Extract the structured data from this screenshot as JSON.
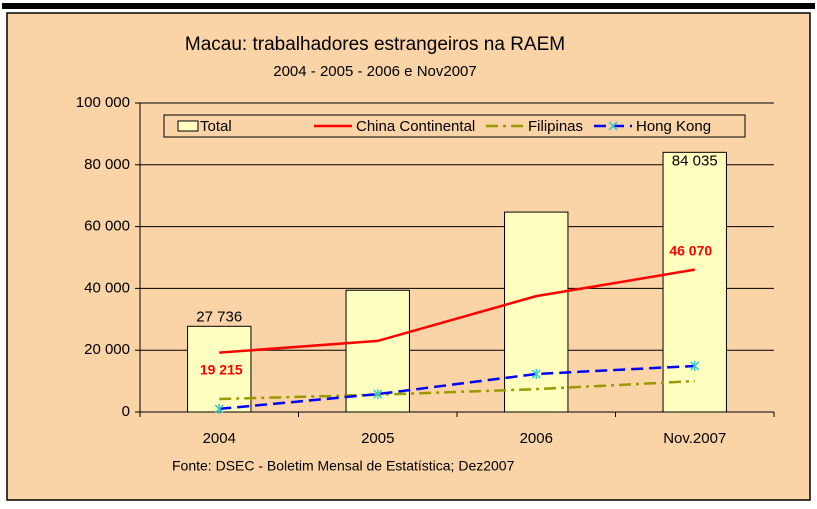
{
  "chart_data": {
    "type": "combo",
    "title": "Macau: trabalhadores estrangeiros na RAEM",
    "subtitle": "2004 - 2005 - 2006 e Nov2007",
    "source": "Fonte: DSEC - Boletim Mensal de Estatística; Dez2007",
    "categories": [
      "2004",
      "2005",
      "2006",
      "Nov.2007"
    ],
    "series": [
      {
        "name": "Total",
        "type": "bar",
        "color": "#FFFFC0",
        "values": [
          27736,
          39400,
          64700,
          84035
        ],
        "value_labels": [
          "27 736",
          null,
          null,
          "84 035"
        ]
      },
      {
        "name": "China Continental",
        "type": "line",
        "color": "#FF0000",
        "dash": "solid",
        "values": [
          19215,
          23000,
          37500,
          46070
        ],
        "value_labels": [
          "19 215",
          null,
          null,
          "46 070"
        ]
      },
      {
        "name": "Filipinas",
        "type": "line",
        "color": "#999900",
        "dash": "dashdot",
        "values": [
          4200,
          5600,
          7400,
          10000
        ]
      },
      {
        "name": "Hong Kong",
        "type": "line",
        "color": "#0000FF",
        "dash": "dashed",
        "marker": "asterisk",
        "marker_color": "#33CCCC",
        "values": [
          1000,
          5800,
          12300,
          14900
        ]
      }
    ],
    "ylim": [
      0,
      100000
    ],
    "yticks": [
      0,
      {
        "value": 20000,
        "label": "20 000"
      },
      {
        "value": 40000,
        "label": "40 000"
      },
      {
        "value": 60000,
        "label": "60 000"
      },
      {
        "value": 80000,
        "label": "80 000"
      },
      {
        "value": 100000,
        "label": "100 000"
      }
    ],
    "grid": true,
    "legend": "top",
    "background": "#FAD3A6"
  }
}
